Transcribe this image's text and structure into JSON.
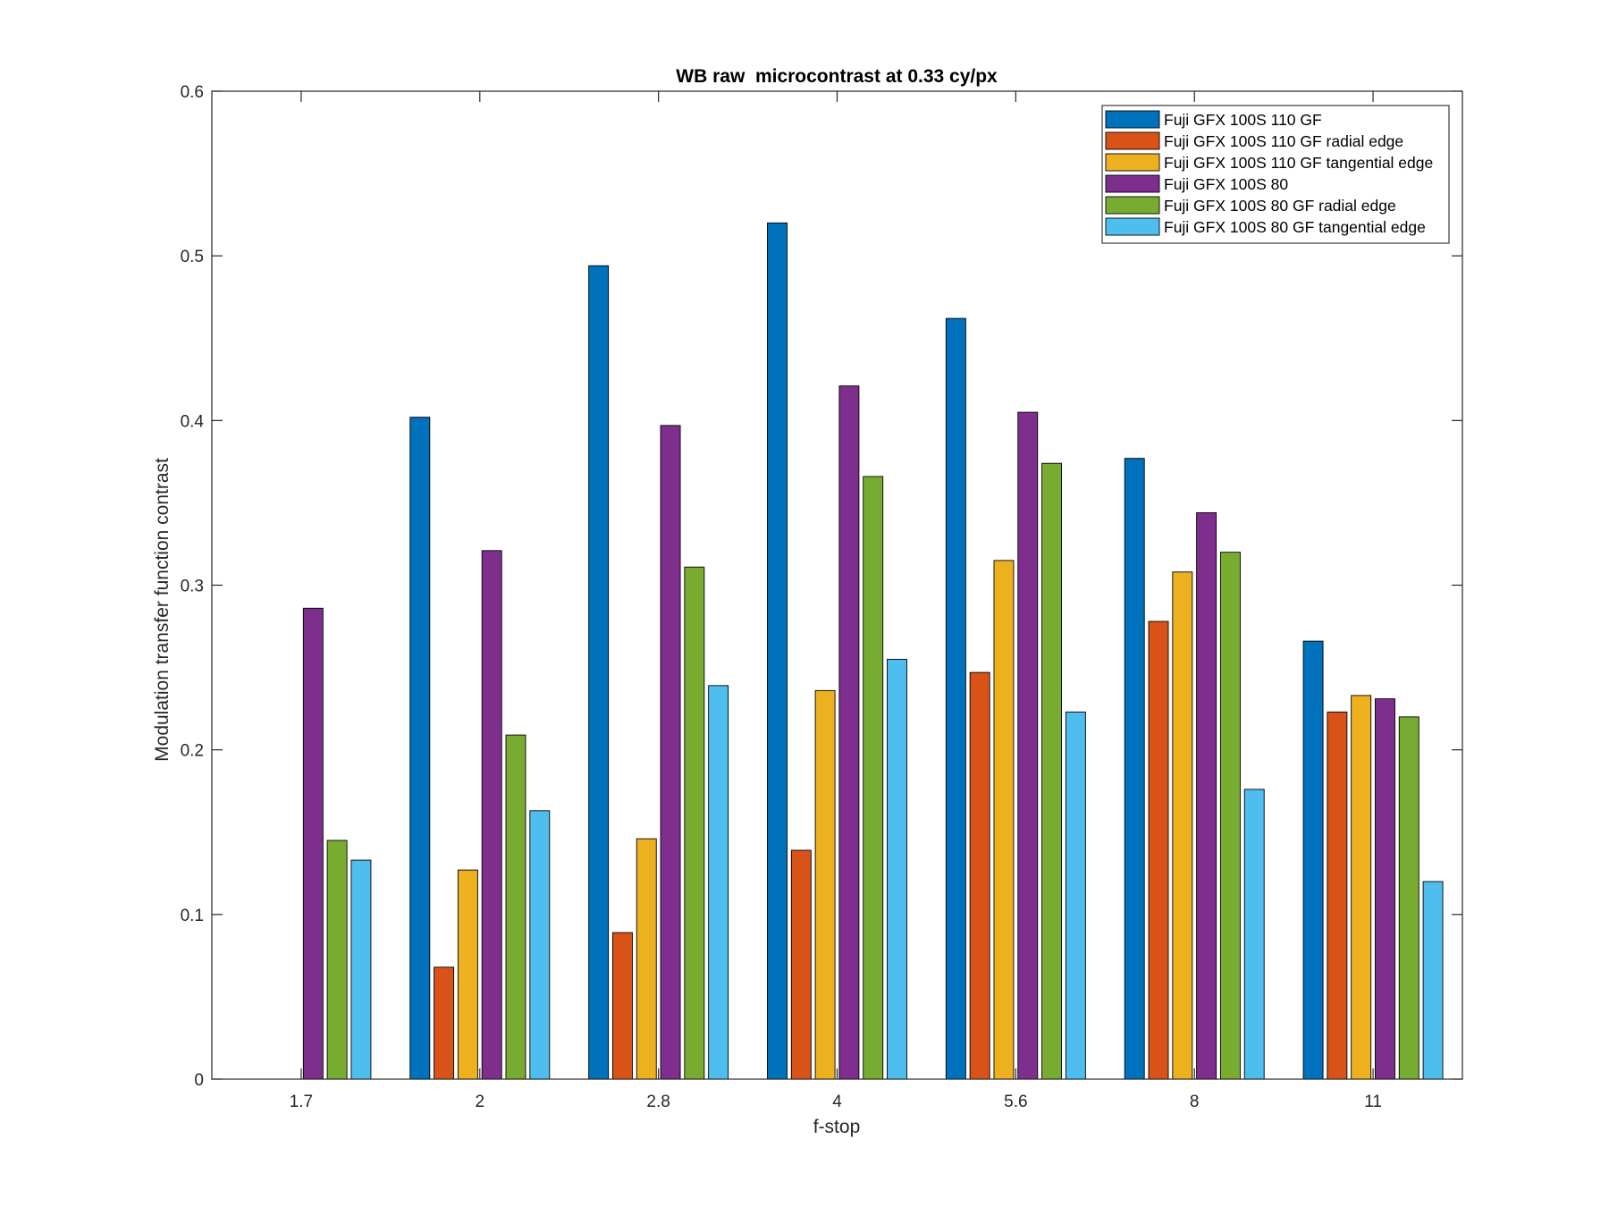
{
  "chart_data": {
    "type": "bar",
    "title": "WB raw  microcontrast at 0.33 cy/px",
    "xlabel": "f-stop",
    "ylabel": "Modulation transfer function contrast",
    "categories": [
      "1.7",
      "2",
      "2.8",
      "4",
      "5.6",
      "8",
      "11"
    ],
    "ylim": [
      0,
      0.6
    ],
    "yticks": [
      "0",
      "0.1",
      "0.2",
      "0.3",
      "0.4",
      "0.5",
      "0.6"
    ],
    "grid": false,
    "legend_position": "top-right",
    "series": [
      {
        "name": "Fuji GFX 100S 110 GF",
        "color": "#0072BD",
        "values": [
          null,
          0.402,
          0.494,
          0.52,
          0.462,
          0.377,
          0.266
        ]
      },
      {
        "name": "Fuji GFX 100S 110 GF radial edge",
        "color": "#D95319",
        "values": [
          null,
          0.068,
          0.089,
          0.139,
          0.247,
          0.278,
          0.223
        ]
      },
      {
        "name": "Fuji GFX 100S 110 GF tangential edge",
        "color": "#EDB120",
        "values": [
          null,
          0.127,
          0.146,
          0.236,
          0.315,
          0.308,
          0.233
        ]
      },
      {
        "name": "Fuji GFX 100S 80",
        "color": "#7E2F8E",
        "values": [
          0.286,
          0.321,
          0.397,
          0.421,
          0.405,
          0.344,
          0.231
        ]
      },
      {
        "name": "Fuji GFX 100S 80 GF radial edge",
        "color": "#77AC30",
        "values": [
          0.145,
          0.209,
          0.311,
          0.366,
          0.374,
          0.32,
          0.22
        ]
      },
      {
        "name": "Fuji GFX 100S 80 GF tangential edge",
        "color": "#4DBEEE",
        "values": [
          0.133,
          0.163,
          0.239,
          0.255,
          0.223,
          0.176,
          0.12
        ]
      }
    ]
  }
}
